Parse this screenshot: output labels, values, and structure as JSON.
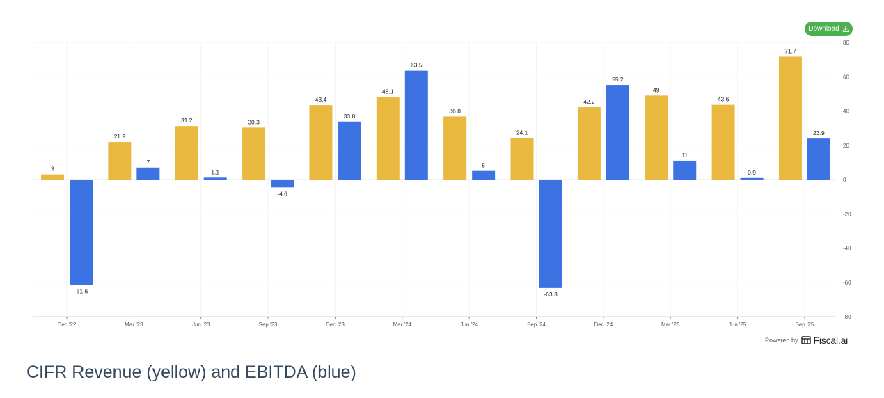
{
  "download": {
    "label": "Download",
    "icon": "download-icon"
  },
  "footer": {
    "powered_by": "Powered by",
    "brand": "Fiscal.ai"
  },
  "caption": "CIFR Revenue (yellow) and EBITDA (blue)",
  "colors": {
    "revenue": "#e8b93e",
    "ebitda": "#3d72e3",
    "button": "#4caf50"
  },
  "chart_data": {
    "type": "bar",
    "categories": [
      "Dec '22",
      "Mar '23",
      "Jun '23",
      "Sep '23",
      "Dec '23",
      "Mar '24",
      "Jun '24",
      "Sep '24",
      "Dec '24",
      "Mar '25",
      "Jun '25",
      "Sep '25"
    ],
    "series": [
      {
        "values": [
          3,
          21.9,
          31.2,
          30.3,
          43.4,
          48.1,
          36.8,
          24.1,
          42.2,
          49,
          43.6,
          71.7
        ],
        "color": "#e8b93e"
      },
      {
        "values": [
          -61.6,
          7,
          1.1,
          -4.6,
          33.8,
          63.5,
          5,
          -63.3,
          55.2,
          11,
          0.9,
          23.9
        ],
        "color": "#3d72e3"
      }
    ],
    "data_labels": [
      [
        "3",
        "21.9",
        "31.2",
        "30.3",
        "43.4",
        "48.1",
        "36.8",
        "24.1",
        "42.2",
        "49",
        "43.6",
        "71.7"
      ],
      [
        "-61.6",
        "7",
        "1.1",
        "-4.6",
        "33.8",
        "63.5",
        "5",
        "-63.3",
        "55.2",
        "11",
        "0.9",
        "23.9"
      ]
    ],
    "ylim": [
      -80,
      80
    ],
    "y_ticks": [
      "80",
      "60",
      "40",
      "20",
      "0",
      "-20",
      "-40",
      "-60",
      "-80"
    ],
    "y_tick_values": [
      80,
      60,
      40,
      20,
      0,
      -20,
      -40,
      -60,
      -80
    ],
    "y_axis_side": "right",
    "grid": true,
    "title": "",
    "xlabel": "",
    "ylabel": ""
  }
}
